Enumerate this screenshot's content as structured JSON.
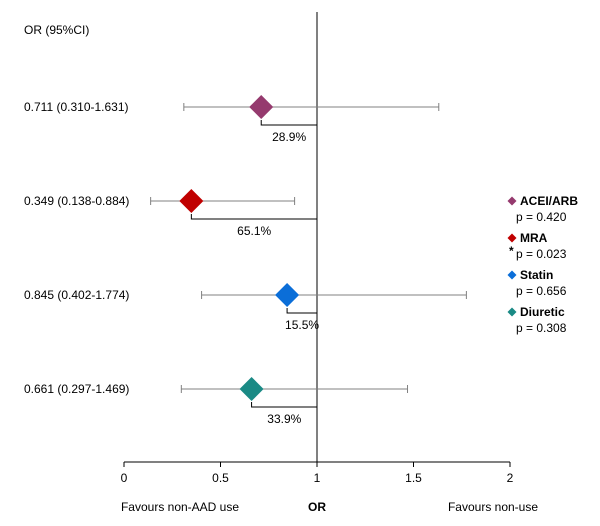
{
  "chart_data": {
    "type": "forest",
    "header": "OR (95%CI)",
    "xlim": [
      0,
      2
    ],
    "xticks": [
      "0",
      "0.5",
      "1",
      "1.5",
      "2"
    ],
    "reference_line": 1,
    "rows": [
      {
        "label": "0.711 (0.310-1.631)",
        "or": 0.711,
        "lo": 0.31,
        "hi": 1.631,
        "reduction": "28.9%",
        "color": "#953a6e"
      },
      {
        "label": "0.349 (0.138-0.884)",
        "or": 0.349,
        "lo": 0.138,
        "hi": 0.884,
        "reduction": "65.1%",
        "color": "#c00000"
      },
      {
        "label": "0.845 (0.402-1.774)",
        "or": 0.845,
        "lo": 0.402,
        "hi": 1.774,
        "reduction": "15.5%",
        "color": "#0b6ed8"
      },
      {
        "label": "0.661 (0.297-1.469)",
        "or": 0.661,
        "lo": 0.297,
        "hi": 1.469,
        "reduction": "33.9%",
        "color": "#1a8a85"
      }
    ],
    "xlabel_left": "Favours non-AAD use",
    "xlabel_center": "OR",
    "xlabel_right": "Favours non-use",
    "legend": [
      {
        "name": "ACEI/ARB",
        "p": "p = 0.420",
        "star": "",
        "color": "#953a6e"
      },
      {
        "name": "MRA",
        "p": "p = 0.023",
        "star": "*",
        "color": "#c00000"
      },
      {
        "name": "Statin",
        "p": "p = 0.656",
        "star": "",
        "color": "#0b6ed8"
      },
      {
        "name": "Diuretic",
        "p": "p = 0.308",
        "star": "",
        "color": "#1a8a85"
      }
    ]
  }
}
